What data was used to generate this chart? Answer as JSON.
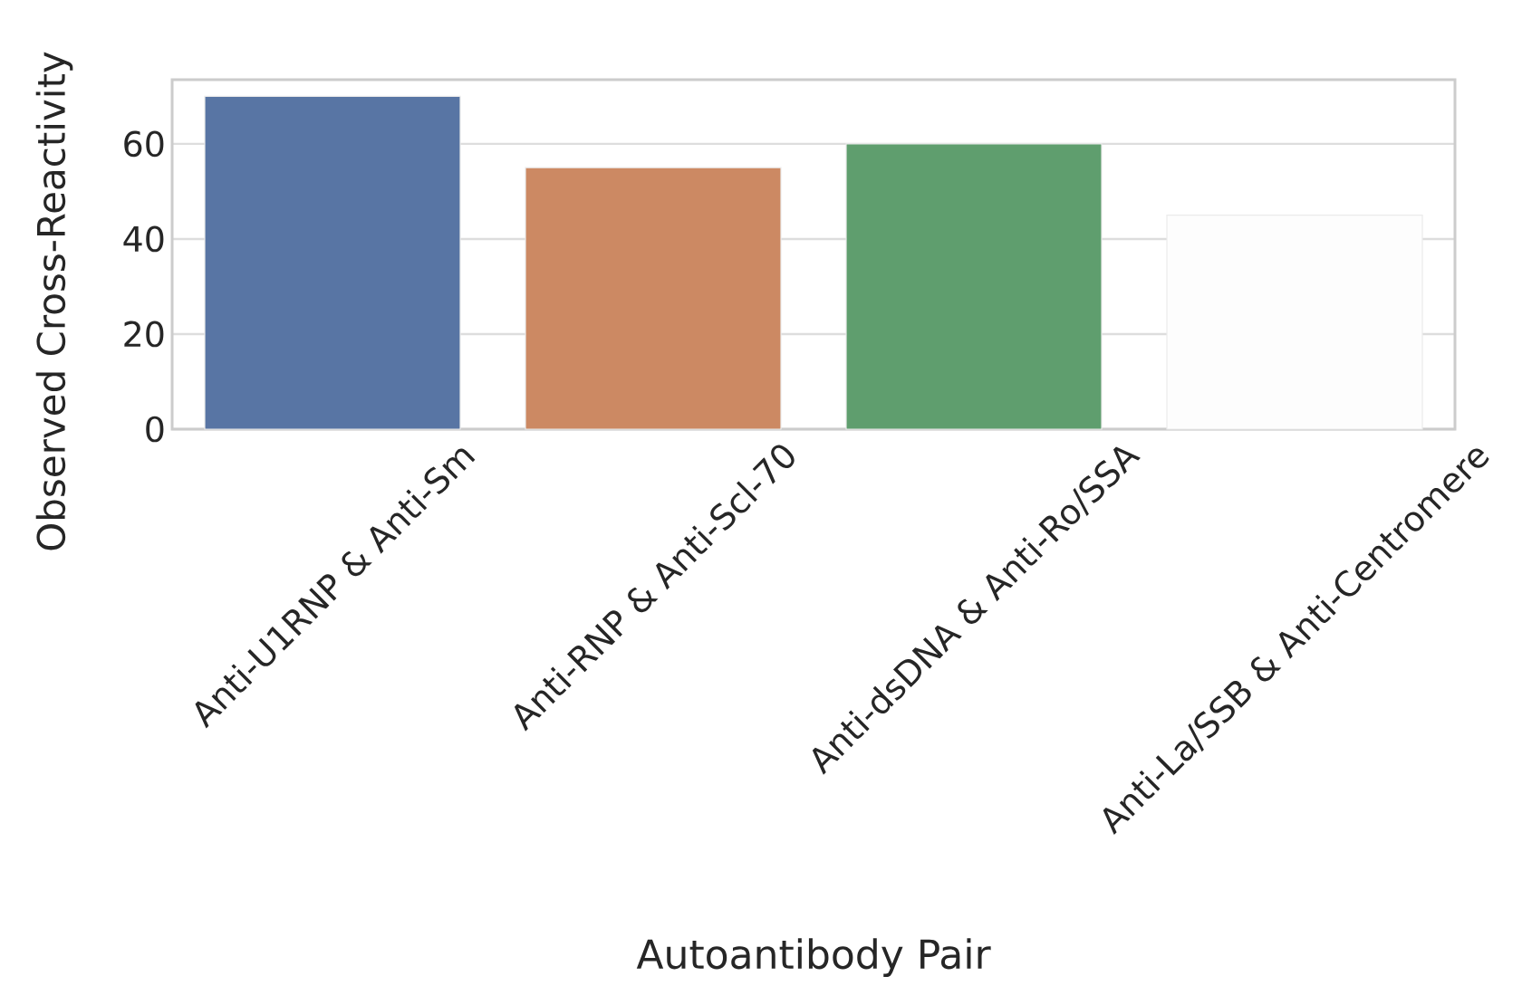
{
  "chart_data": {
    "type": "bar",
    "categories": [
      "Anti-U1RNP & Anti-Sm",
      "Anti-RNP & Anti-Scl-70",
      "Anti-dsDNA & Anti-Ro/SSA",
      "Anti-La/SSB & Anti-Centromere"
    ],
    "values": [
      70,
      55,
      60,
      45
    ],
    "colors": [
      "#5875a4",
      "#cc8963",
      "#5f9e6e",
      "#fdfdfd"
    ],
    "xlabel": "Autoantibody Pair",
    "ylabel": "Observed Cross-Reactivity",
    "ylim": [
      0,
      73.5
    ],
    "yticks": [
      0,
      20,
      40,
      60
    ],
    "grid": "y"
  }
}
